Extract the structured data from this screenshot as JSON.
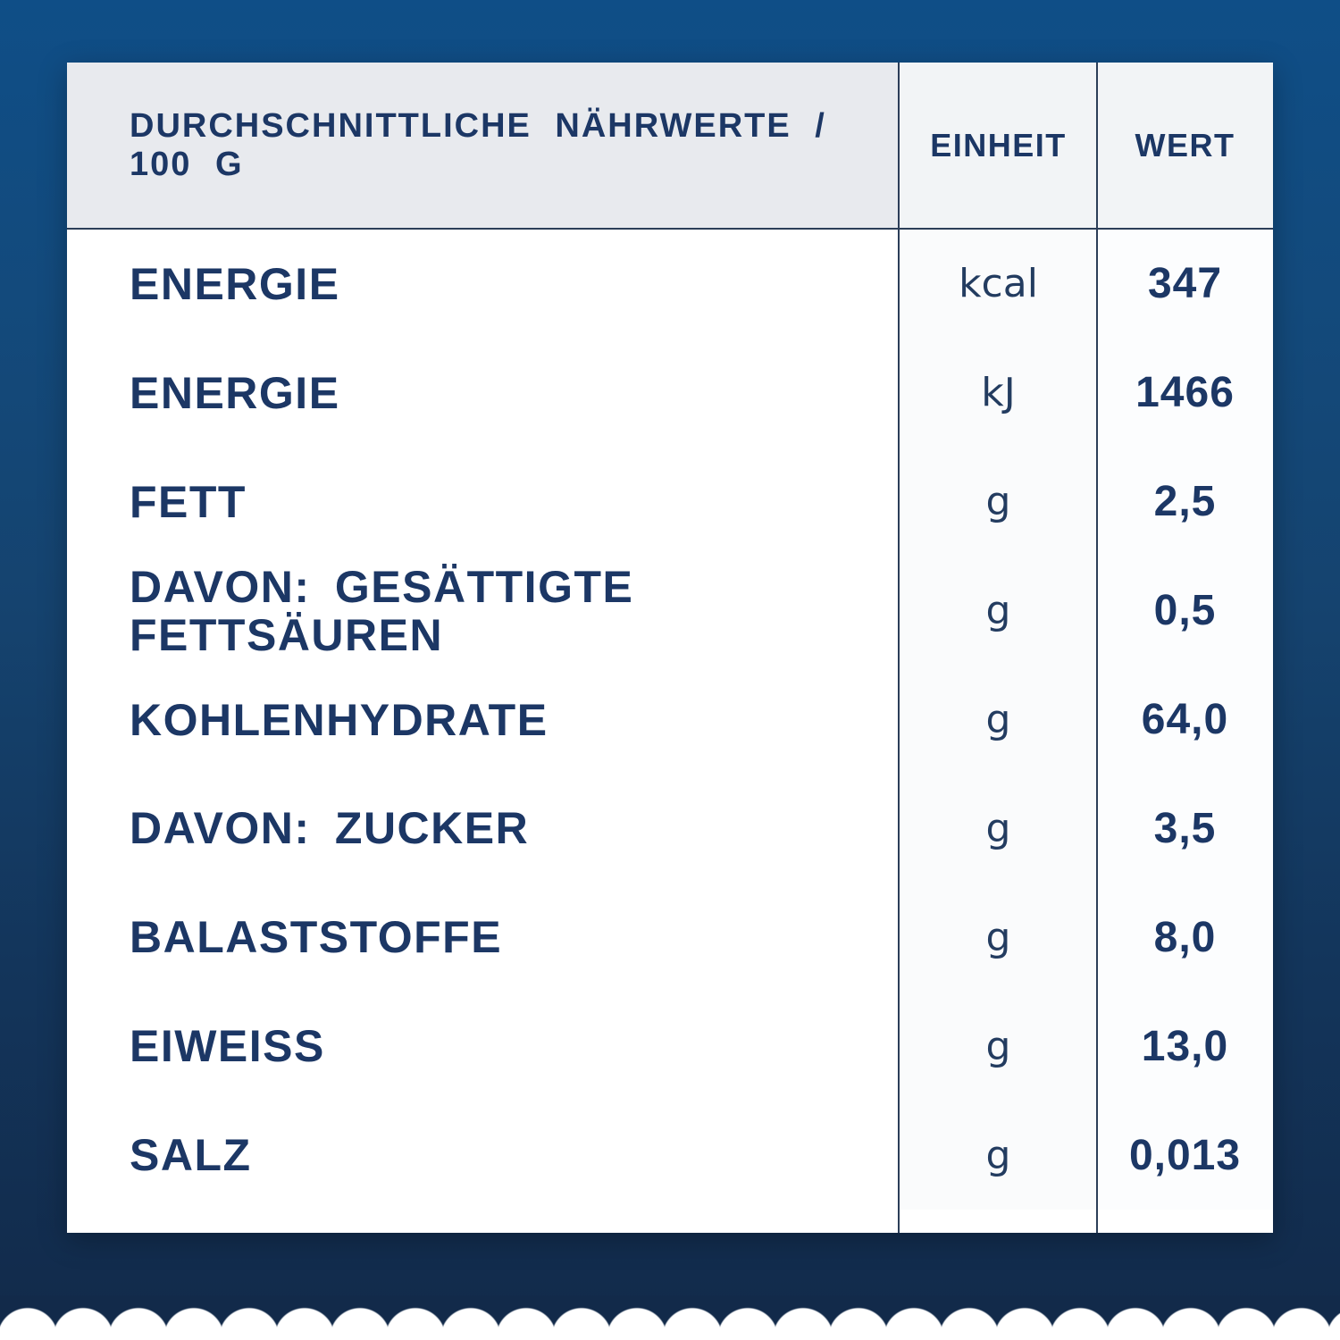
{
  "card": {
    "header": {
      "nutrients": "DURCHSCHNITTLICHE NÄHRWERTE / 100 G",
      "unit": "EINHEIT",
      "value": "WERT"
    },
    "rows": [
      {
        "label": "ENERGIE",
        "unit": "kcal",
        "value": "347"
      },
      {
        "label": "ENERGIE",
        "unit": "kJ",
        "value": "1466"
      },
      {
        "label": "FETT",
        "unit": "g",
        "value": "2,5"
      },
      {
        "label": "DAVON: GESÄTTIGTE FETTSÄUREN",
        "unit": "g",
        "value": "0,5"
      },
      {
        "label": "KOHLENHYDRATE",
        "unit": "g",
        "value": "64,0"
      },
      {
        "label": "DAVON: ZUCKER",
        "unit": "g",
        "value": "3,5"
      },
      {
        "label": "BALASTSTOFFE",
        "unit": "g",
        "value": "8,0"
      },
      {
        "label": "EIWEISS",
        "unit": "g",
        "value": "13,0"
      },
      {
        "label": "SALZ",
        "unit": "g",
        "value": "0,013"
      }
    ]
  },
  "colors": {
    "background_top": "#0f4e87",
    "background_bottom": "#122a4a",
    "card_background": "#ffffff",
    "header_left_background": "#e8eaee",
    "header_right_background": "#f2f4f6",
    "text_navy": "#1c3765",
    "divider": "#2c3e58",
    "scallop_white": "#ffffff"
  }
}
